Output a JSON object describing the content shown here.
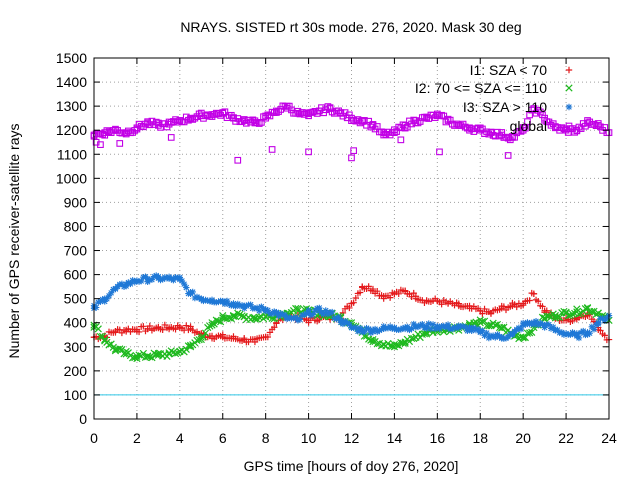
{
  "chart_data": {
    "type": "scatter",
    "title": "NRAYS. SISTED rt 30s mode. 276, 2020. Mask 30 deg",
    "xlabel": "GPS time [hours of doy 276, 2020]",
    "ylabel": "Number of GPS receiver-satellite rays",
    "xlim": [
      0,
      24
    ],
    "ylim": [
      0,
      1500
    ],
    "xticks": [
      0,
      2,
      4,
      6,
      8,
      10,
      12,
      14,
      16,
      18,
      20,
      22,
      24
    ],
    "yticks": [
      0,
      100,
      200,
      300,
      400,
      500,
      600,
      700,
      800,
      900,
      1000,
      1100,
      1200,
      1300,
      1400,
      1500
    ],
    "grid": true,
    "legend_position": "top-right",
    "reference_line": {
      "y": 100,
      "color": "#2ec6e6"
    },
    "series": [
      {
        "name": "I1: SZA < 70",
        "marker": "+",
        "color": "#e41a1c",
        "x": [
          0,
          0.5,
          1,
          1.5,
          2,
          2.5,
          3,
          3.5,
          4,
          4.5,
          5,
          5.5,
          6,
          6.5,
          7,
          7.5,
          8,
          8.5,
          9,
          9.5,
          10,
          10.5,
          11,
          11.5,
          12,
          12.5,
          13,
          13.5,
          14,
          14.5,
          15,
          15.5,
          16,
          16.5,
          17,
          17.5,
          18,
          18.5,
          19,
          19.5,
          20,
          20.5,
          21,
          21.5,
          22,
          22.5,
          23,
          23.5,
          24
        ],
        "y": [
          340,
          345,
          365,
          370,
          372,
          375,
          378,
          380,
          382,
          375,
          350,
          345,
          340,
          335,
          330,
          320,
          340,
          400,
          430,
          420,
          410,
          420,
          420,
          430,
          480,
          550,
          540,
          510,
          520,
          530,
          510,
          490,
          490,
          480,
          470,
          460,
          450,
          440,
          460,
          470,
          480,
          520,
          450,
          420,
          410,
          420,
          440,
          380,
          330
        ]
      },
      {
        "name": "I2: 70 <= SZA <= 110",
        "marker": "x",
        "color": "#1eb91e",
        "x": [
          0,
          0.5,
          1,
          1.5,
          2,
          2.5,
          3,
          3.5,
          4,
          4.5,
          5,
          5.5,
          6,
          6.5,
          7,
          7.5,
          8,
          8.5,
          9,
          9.5,
          10,
          10.5,
          11,
          11.5,
          12,
          12.5,
          13,
          13.5,
          14,
          14.5,
          15,
          15.5,
          16,
          16.5,
          17,
          17.5,
          18,
          18.5,
          19,
          19.5,
          20,
          20.5,
          21,
          21.5,
          22,
          22.5,
          23,
          23.5,
          24
        ],
        "y": [
          390,
          330,
          290,
          270,
          260,
          262,
          265,
          270,
          280,
          300,
          340,
          390,
          420,
          430,
          425,
          420,
          425,
          430,
          440,
          450,
          445,
          440,
          430,
          420,
          400,
          360,
          330,
          310,
          300,
          320,
          340,
          360,
          370,
          375,
          380,
          390,
          400,
          390,
          380,
          350,
          340,
          380,
          420,
          430,
          440,
          445,
          460,
          440,
          410
        ]
      },
      {
        "name": "I3: SZA > 110",
        "marker": "*",
        "color": "#1f78d6",
        "x": [
          0,
          0.5,
          1,
          1.5,
          2,
          2.5,
          3,
          3.5,
          4,
          4.5,
          5,
          5.5,
          6,
          6.5,
          7,
          7.5,
          8,
          8.5,
          9,
          9.5,
          10,
          10.5,
          11,
          11.5,
          12,
          12.5,
          13,
          13.5,
          14,
          14.5,
          15,
          15.5,
          16,
          16.5,
          17,
          17.5,
          18,
          18.5,
          19,
          19.5,
          20,
          20.5,
          21,
          21.5,
          22,
          22.5,
          23,
          23.5,
          24
        ],
        "y": [
          460,
          500,
          540,
          560,
          575,
          582,
          585,
          583,
          580,
          520,
          500,
          495,
          490,
          480,
          470,
          460,
          455,
          440,
          420,
          410,
          440,
          450,
          440,
          410,
          380,
          370,
          370,
          375,
          380,
          380,
          385,
          385,
          385,
          382,
          380,
          375,
          360,
          345,
          340,
          350,
          390,
          400,
          390,
          370,
          355,
          345,
          360,
          400,
          430
        ]
      },
      {
        "name": "global",
        "marker": "square",
        "color": "#c200e6",
        "x": [
          0,
          0.5,
          1,
          1.5,
          2,
          2.5,
          3,
          3.5,
          4,
          4.5,
          5,
          5.5,
          6,
          6.5,
          7,
          7.5,
          8,
          8.5,
          9,
          9.5,
          10,
          10.5,
          11,
          11.5,
          12,
          12.5,
          13,
          13.5,
          14,
          14.5,
          15,
          15.5,
          16,
          16.5,
          17,
          17.5,
          18,
          18.5,
          19,
          19.5,
          20,
          20.5,
          21,
          21.5,
          22,
          22.5,
          23,
          23.5,
          24
        ],
        "y": [
          1180,
          1190,
          1200,
          1190,
          1210,
          1230,
          1220,
          1225,
          1240,
          1250,
          1260,
          1265,
          1270,
          1250,
          1240,
          1230,
          1250,
          1280,
          1300,
          1270,
          1260,
          1280,
          1290,
          1270,
          1250,
          1240,
          1220,
          1180,
          1190,
          1220,
          1240,
          1250,
          1260,
          1240,
          1220,
          1210,
          1200,
          1190,
          1180,
          1170,
          1200,
          1290,
          1250,
          1210,
          1200,
          1200,
          1230,
          1220,
          1190
        ]
      }
    ],
    "outliers": {
      "series": "global",
      "x": [
        0.1,
        0.3,
        1.2,
        3.6,
        6.7,
        8.3,
        10,
        12,
        12.1,
        14.3,
        16.1,
        19.3
      ],
      "y": [
        1150,
        1140,
        1145,
        1170,
        1075,
        1120,
        1110,
        1085,
        1115,
        1160,
        1110,
        1095
      ]
    }
  }
}
